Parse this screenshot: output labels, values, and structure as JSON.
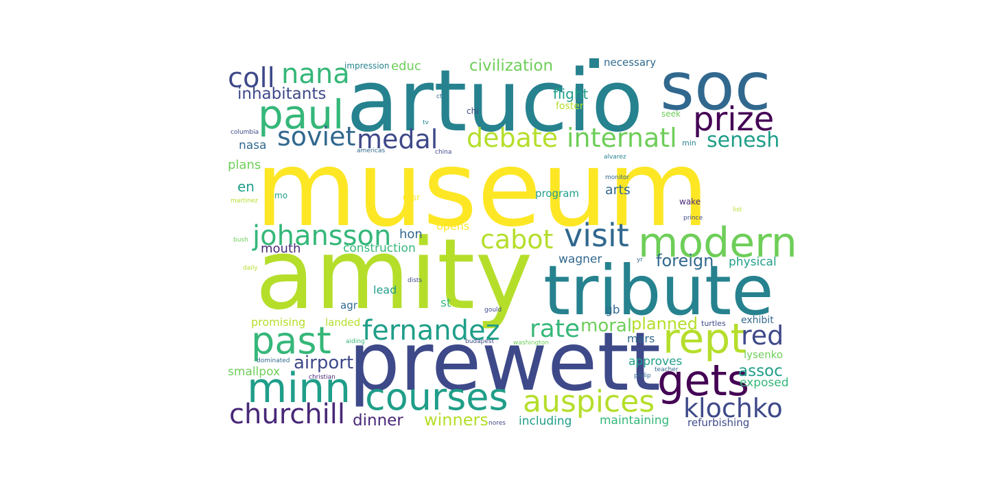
{
  "palette": {
    "background": "#ffffff",
    "yellow": "#fde725",
    "lime": "#b5de2b",
    "green": "#6ece58",
    "mint": "#35b779",
    "teal": "#1f9e89",
    "cyan": "#26828e",
    "blue": "#31688e",
    "indigo": "#3e4989",
    "purple": "#482878",
    "violet": "#440154"
  },
  "words": [
    {
      "text": "museum",
      "color": "#fde725"
    },
    {
      "text": "amity",
      "color": "#b5de2b"
    },
    {
      "text": "artucio",
      "color": "#26828e"
    },
    {
      "text": "prewett",
      "color": "#3e4989"
    },
    {
      "text": "tribute",
      "color": "#26828e"
    },
    {
      "text": "soc",
      "color": "#31688e"
    },
    {
      "text": "modern",
      "color": "#6ece58"
    },
    {
      "text": "paul",
      "color": "#35b779"
    },
    {
      "text": "gets",
      "color": "#440154"
    },
    {
      "text": "rept",
      "color": "#b5de2b"
    },
    {
      "text": "past",
      "color": "#35b779"
    },
    {
      "text": "minn",
      "color": "#1f9e89"
    },
    {
      "text": "courses",
      "color": "#1f9e89"
    },
    {
      "text": "auspices",
      "color": "#b5de2b"
    },
    {
      "text": "nana",
      "color": "#35b779"
    },
    {
      "text": "coll",
      "color": "#3e4989"
    },
    {
      "text": "prize",
      "color": "#440154"
    },
    {
      "text": "johansson",
      "color": "#35b779"
    },
    {
      "text": "churchill",
      "color": "#482878"
    },
    {
      "text": "fernandez",
      "color": "#1f9e89"
    },
    {
      "text": "cabot",
      "color": "#b5de2b"
    },
    {
      "text": "visit",
      "color": "#31688e"
    },
    {
      "text": "klochko",
      "color": "#3e4989"
    },
    {
      "text": "soviet",
      "color": "#31688e"
    },
    {
      "text": "medal",
      "color": "#3e4989"
    },
    {
      "text": "debate",
      "color": "#b5de2b"
    },
    {
      "text": "internatl",
      "color": "#6ece58"
    },
    {
      "text": "red",
      "color": "#3e4989"
    },
    {
      "text": "rate",
      "color": "#35b779"
    },
    {
      "text": "senesh",
      "color": "#1f9e89"
    },
    {
      "text": "civilization",
      "color": "#6ece58"
    },
    {
      "text": "inhabitants",
      "color": "#3e4989"
    },
    {
      "text": "airport",
      "color": "#3e4989"
    },
    {
      "text": "foreign",
      "color": "#31688e"
    },
    {
      "text": "moral",
      "color": "#6ece58"
    },
    {
      "text": "planned",
      "color": "#b5de2b"
    },
    {
      "text": "winners",
      "color": "#b5de2b"
    },
    {
      "text": "dinner",
      "color": "#482878"
    },
    {
      "text": "assoc",
      "color": "#1f9e89"
    },
    {
      "text": "flight",
      "color": "#1f9e89"
    },
    {
      "text": "educ",
      "color": "#6ece58"
    },
    {
      "text": "nasa",
      "color": "#31688e"
    },
    {
      "text": "en",
      "color": "#1f9e89"
    },
    {
      "text": "plans",
      "color": "#6ece58"
    },
    {
      "text": "arts",
      "color": "#31688e"
    },
    {
      "text": "hon",
      "color": "#31688e"
    },
    {
      "text": "mouth",
      "color": "#482878"
    },
    {
      "text": "construction",
      "color": "#35b779"
    },
    {
      "text": "opens",
      "color": "#fde725"
    },
    {
      "text": "wagner",
      "color": "#31688e"
    },
    {
      "text": "physical",
      "color": "#1f9e89"
    },
    {
      "text": "smallpox",
      "color": "#6ece58"
    },
    {
      "text": "exposed",
      "color": "#35b779"
    },
    {
      "text": "approves",
      "color": "#1f9e89"
    },
    {
      "text": "including",
      "color": "#1f9e89"
    },
    {
      "text": "maintaining",
      "color": "#35b779"
    },
    {
      "text": "refurbishing",
      "color": "#3e4989"
    },
    {
      "text": "lysenko",
      "color": "#6ece58"
    },
    {
      "text": "exhibit",
      "color": "#31688e"
    },
    {
      "text": "mars",
      "color": "#31688e"
    },
    {
      "text": "gb",
      "color": "#31688e"
    },
    {
      "text": "st",
      "color": "#35b779"
    },
    {
      "text": "agr",
      "color": "#31688e"
    },
    {
      "text": "lead",
      "color": "#1f9e89"
    },
    {
      "text": "promising",
      "color": "#b5de2b"
    },
    {
      "text": "landed",
      "color": "#b5de2b"
    },
    {
      "text": "program",
      "color": "#1f9e89"
    },
    {
      "text": "necessary",
      "color": "#31688e"
    },
    {
      "text": "foster",
      "color": "#b5de2b"
    },
    {
      "text": "impression",
      "color": "#26828e"
    },
    {
      "text": "seek",
      "color": "#6ece58"
    },
    {
      "text": "chi",
      "color": "#3e4989"
    },
    {
      "text": "ussr",
      "color": "#fde725"
    },
    {
      "text": "wake",
      "color": "#482878"
    },
    {
      "text": "min",
      "color": "#26828e"
    },
    {
      "text": "mo",
      "color": "#1f9e89"
    },
    {
      "text": "turtles",
      "color": "#3e4989"
    },
    {
      "text": "alvarez",
      "color": "#26828e"
    },
    {
      "text": "monitor",
      "color": "#31688e"
    },
    {
      "text": "prince",
      "color": "#3e4989"
    },
    {
      "text": "list",
      "color": "#b5de2b"
    },
    {
      "text": "martinez",
      "color": "#b5de2b"
    },
    {
      "text": "bush",
      "color": "#6ece58"
    },
    {
      "text": "daily",
      "color": "#b5de2b"
    },
    {
      "text": "columbia",
      "color": "#3e4989"
    },
    {
      "text": "americas",
      "color": "#31688e"
    },
    {
      "text": "china",
      "color": "#3e4989"
    },
    {
      "text": "ct",
      "color": "#31688e"
    },
    {
      "text": "tv",
      "color": "#26828e"
    },
    {
      "text": "yr",
      "color": "#31688e"
    },
    {
      "text": "dists",
      "color": "#3e4989"
    },
    {
      "text": "gould",
      "color": "#3e4989"
    },
    {
      "text": "aiding",
      "color": "#35b779"
    },
    {
      "text": "budapest",
      "color": "#3e4989"
    },
    {
      "text": "washington",
      "color": "#6ece58"
    },
    {
      "text": "dominated",
      "color": "#31688e"
    },
    {
      "text": "christian",
      "color": "#482878"
    },
    {
      "text": "nores",
      "color": "#3e4989"
    },
    {
      "text": "philip",
      "color": "#31688e"
    },
    {
      "text": "teacher",
      "color": "#31688e"
    },
    {
      "text": "",
      "color": "#26828e",
      "glyph": "square"
    }
  ]
}
